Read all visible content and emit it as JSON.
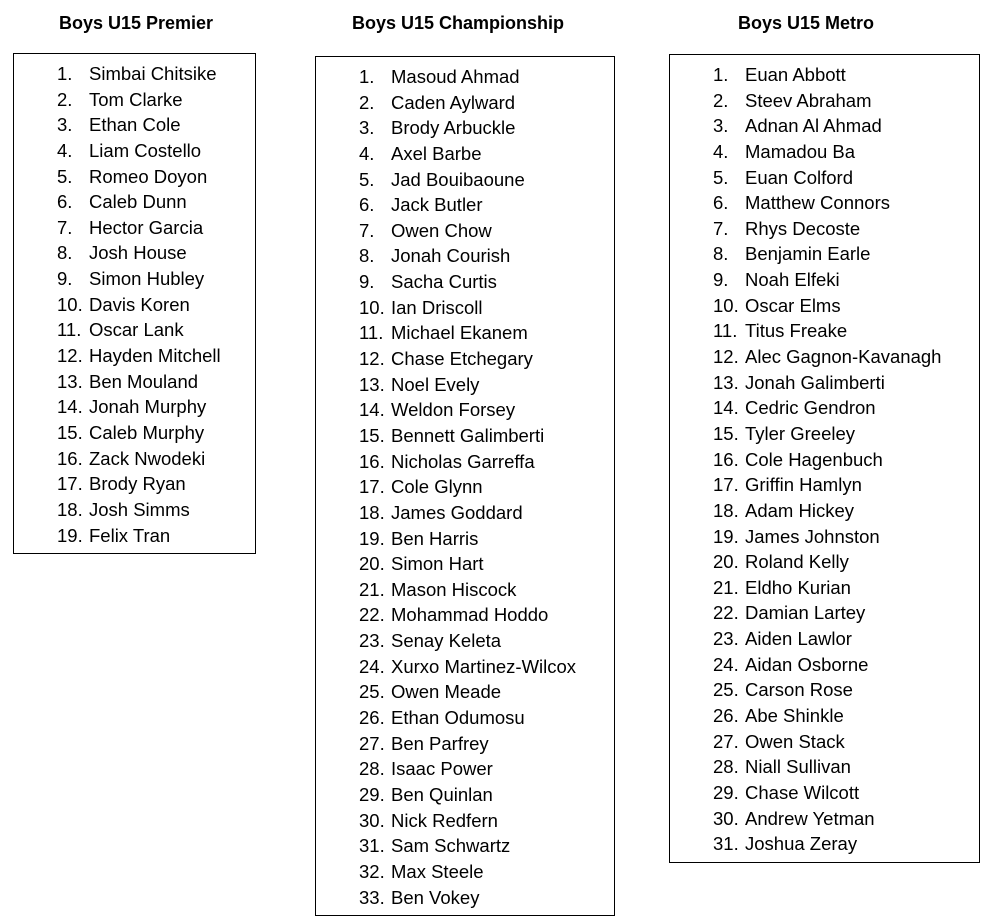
{
  "lists": [
    {
      "title": "Boys U15 Premier",
      "players": [
        "Simbai Chitsike",
        "Tom Clarke",
        "Ethan Cole",
        "Liam Costello",
        "Romeo Doyon",
        "Caleb Dunn",
        "Hector Garcia",
        "Josh House",
        "Simon Hubley",
        "Davis Koren",
        "Oscar Lank",
        "Hayden Mitchell",
        "Ben Mouland",
        "Jonah Murphy",
        "Caleb Murphy",
        "Zack Nwodeki",
        "Brody Ryan",
        "Josh Simms",
        "Felix Tran"
      ]
    },
    {
      "title": "Boys U15 Championship",
      "players": [
        "Masoud Ahmad",
        "Caden Aylward",
        "Brody Arbuckle",
        "Axel Barbe",
        "Jad Bouibaoune",
        "Jack Butler",
        "Owen Chow",
        "Jonah Courish",
        "Sacha Curtis",
        "Ian Driscoll",
        "Michael Ekanem",
        "Chase Etchegary",
        "Noel Evely",
        "Weldon Forsey",
        "Bennett Galimberti",
        "Nicholas Garreffa",
        "Cole Glynn",
        "James Goddard",
        "Ben Harris",
        "Simon Hart",
        "Mason Hiscock",
        "Mohammad Hoddo",
        "Senay Keleta",
        "Xurxo Martinez-Wilcox",
        "Owen Meade",
        "Ethan Odumosu",
        "Ben Parfrey",
        "Isaac Power",
        "Ben Quinlan",
        "Nick Redfern",
        "Sam Schwartz",
        "Max Steele",
        "Ben Vokey"
      ]
    },
    {
      "title": "Boys U15 Metro",
      "players": [
        "Euan Abbott",
        "Steev Abraham",
        "Adnan Al Ahmad",
        "Mamadou Ba",
        "Euan Colford",
        "Matthew Connors",
        "Rhys Decoste",
        "Benjamin Earle",
        "Noah Elfeki",
        "Oscar Elms",
        "Titus Freake",
        "Alec Gagnon-Kavanagh",
        "Jonah Galimberti",
        "Cedric Gendron",
        "Tyler Greeley",
        "Cole Hagenbuch",
        "Griffin Hamlyn",
        "Adam Hickey",
        "James Johnston",
        "Roland Kelly",
        "Eldho Kurian",
        "Damian Lartey",
        "Aiden Lawlor",
        "Aidan Osborne",
        "Carson Rose",
        "Abe Shinkle",
        "Owen Stack",
        "Niall Sullivan",
        "Chase Wilcott",
        "Andrew Yetman",
        "Joshua Zeray"
      ]
    }
  ]
}
